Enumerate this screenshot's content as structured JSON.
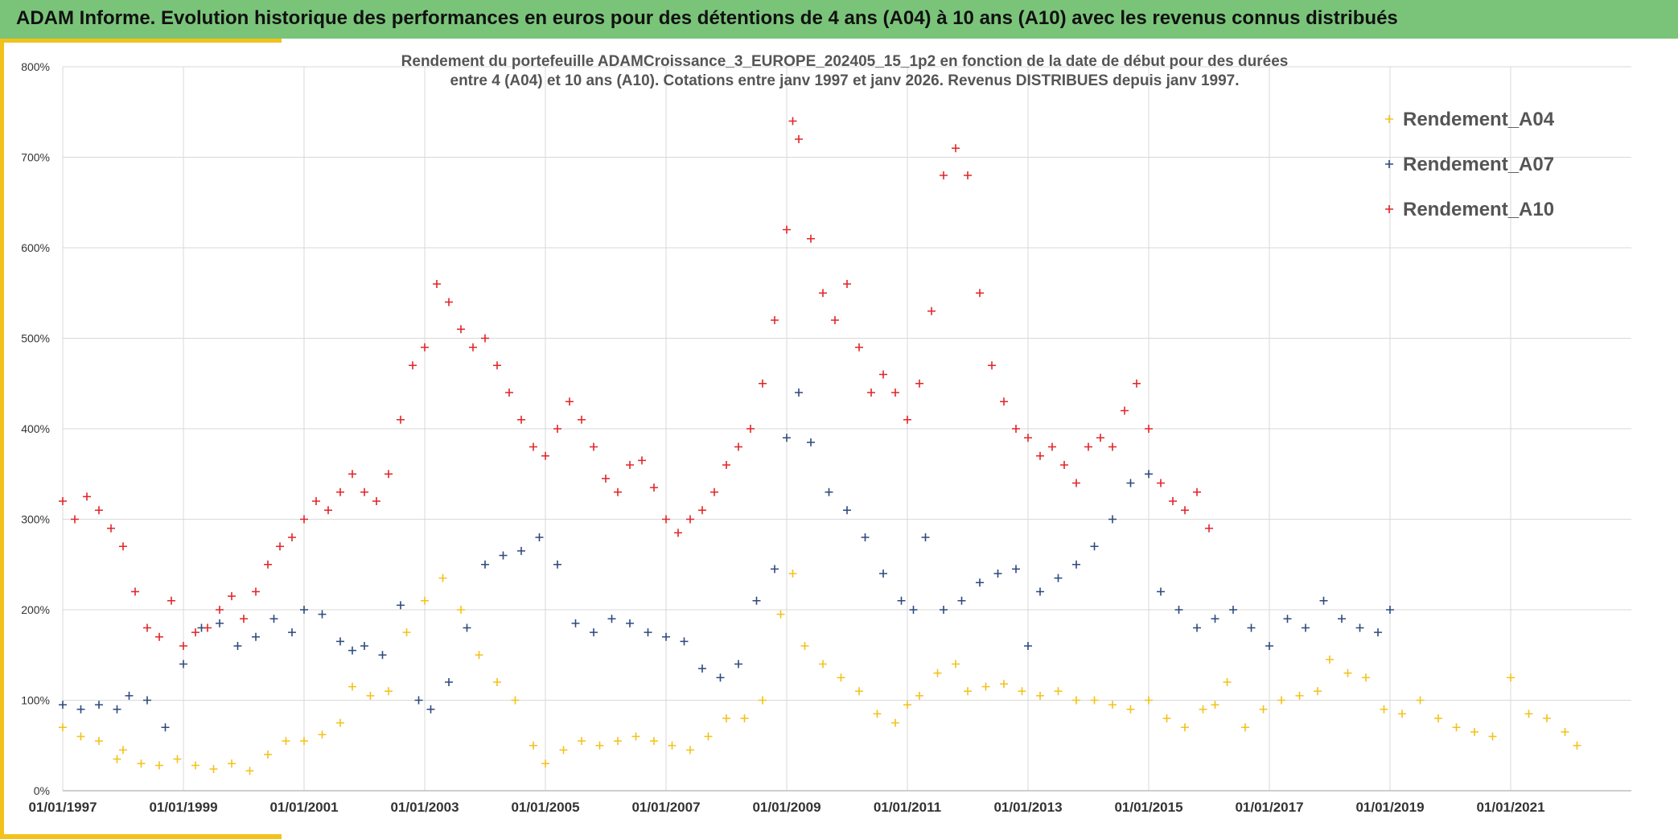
{
  "banner": {
    "title": "ADAM Informe. Evolution historique des performances en euros pour des détentions de 4 ans (A04) à 10 ans (A10) avec les revenus connus distribués"
  },
  "chart_data": {
    "type": "scatter",
    "title_line1": "Rendement du portefeuille ADAMCroissance_3_EUROPE_202405_15_1p2  en fonction de la date de début pour des durées",
    "title_line2": "entre 4 (A04) et 10 ans (A10). Cotations entre janv 1997 et janv 2026. Revenus DISTRIBUES depuis janv 1997.",
    "x_ticks": [
      "01/01/1997",
      "01/01/1999",
      "01/01/2001",
      "01/01/2003",
      "01/01/2005",
      "01/01/2007",
      "01/01/2009",
      "01/01/2011",
      "01/01/2013",
      "01/01/2015",
      "01/01/2017",
      "01/01/2019",
      "01/01/2021"
    ],
    "y_ticks": [
      "0%",
      "100%",
      "200%",
      "300%",
      "400%",
      "500%",
      "600%",
      "700%",
      "800%"
    ],
    "xlim": [
      1997.0,
      2023.0
    ],
    "ylim": [
      0,
      800
    ],
    "legend_position": "top-right",
    "series": [
      {
        "name": "Rendement_A04",
        "color": "#f2c21b",
        "x": [
          1997.0,
          1997.3,
          1997.6,
          1997.9,
          1998.0,
          1998.3,
          1998.6,
          1998.9,
          1999.2,
          1999.5,
          1999.8,
          2000.1,
          2000.4,
          2000.7,
          2001.0,
          2001.3,
          2001.6,
          2001.8,
          2002.1,
          2002.4,
          2002.7,
          2003.0,
          2003.3,
          2003.6,
          2003.9,
          2004.2,
          2004.5,
          2004.8,
          2005.0,
          2005.3,
          2005.6,
          2005.9,
          2006.2,
          2006.5,
          2006.8,
          2007.1,
          2007.4,
          2007.7,
          2008.0,
          2008.3,
          2008.6,
          2008.9,
          2009.1,
          2009.3,
          2009.6,
          2009.9,
          2010.2,
          2010.5,
          2010.8,
          2011.0,
          2011.2,
          2011.5,
          2011.8,
          2012.0,
          2012.3,
          2012.6,
          2012.9,
          2013.2,
          2013.5,
          2013.8,
          2014.1,
          2014.4,
          2014.7,
          2015.0,
          2015.3,
          2015.6,
          2015.9,
          2016.1,
          2016.3,
          2016.6,
          2016.9,
          2017.2,
          2017.5,
          2017.8,
          2018.0,
          2018.3,
          2018.6,
          2018.9,
          2019.2,
          2019.5,
          2019.8,
          2020.1,
          2020.4,
          2020.7,
          2021.0,
          2021.3,
          2021.6,
          2021.9,
          2022.1
        ],
        "y": [
          70,
          60,
          55,
          35,
          45,
          30,
          28,
          35,
          28,
          24,
          30,
          22,
          40,
          55,
          55,
          62,
          75,
          115,
          105,
          110,
          175,
          210,
          235,
          200,
          150,
          120,
          100,
          50,
          30,
          45,
          55,
          50,
          55,
          60,
          55,
          50,
          45,
          60,
          80,
          80,
          100,
          195,
          240,
          160,
          140,
          125,
          110,
          85,
          75,
          95,
          105,
          130,
          140,
          110,
          115,
          118,
          110,
          105,
          110,
          100,
          100,
          95,
          90,
          100,
          80,
          70,
          90,
          95,
          120,
          70,
          90,
          100,
          105,
          110,
          145,
          130,
          125,
          90,
          85,
          100,
          80,
          70,
          65,
          60,
          125,
          85,
          80,
          65,
          50
        ]
      },
      {
        "name": "Rendement_A07",
        "color": "#2e4a7d",
        "x": [
          1997.0,
          1997.3,
          1997.6,
          1997.9,
          1998.1,
          1998.4,
          1998.7,
          1999.0,
          1999.3,
          1999.6,
          1999.9,
          2000.2,
          2000.5,
          2000.8,
          2001.0,
          2001.3,
          2001.6,
          2001.8,
          2002.0,
          2002.3,
          2002.6,
          2002.9,
          2003.1,
          2003.4,
          2003.7,
          2004.0,
          2004.3,
          2004.6,
          2004.9,
          2005.2,
          2005.5,
          2005.8,
          2006.1,
          2006.4,
          2006.7,
          2007.0,
          2007.3,
          2007.6,
          2007.9,
          2008.2,
          2008.5,
          2008.8,
          2009.0,
          2009.2,
          2009.4,
          2009.7,
          2010.0,
          2010.3,
          2010.6,
          2010.9,
          2011.1,
          2011.3,
          2011.6,
          2011.9,
          2012.2,
          2012.5,
          2012.8,
          2013.0,
          2013.2,
          2013.5,
          2013.8,
          2014.1,
          2014.4,
          2014.7,
          2015.0,
          2015.2,
          2015.5,
          2015.8,
          2016.1,
          2016.4,
          2016.7,
          2017.0,
          2017.3,
          2017.6,
          2017.9,
          2018.2,
          2018.5,
          2018.8,
          2019.0
        ],
        "y": [
          95,
          90,
          95,
          90,
          105,
          100,
          70,
          140,
          180,
          185,
          160,
          170,
          190,
          175,
          200,
          195,
          165,
          155,
          160,
          150,
          205,
          100,
          90,
          120,
          180,
          250,
          260,
          265,
          280,
          250,
          185,
          175,
          190,
          185,
          175,
          170,
          165,
          135,
          125,
          140,
          210,
          245,
          390,
          440,
          385,
          330,
          310,
          280,
          240,
          210,
          200,
          280,
          200,
          210,
          230,
          240,
          245,
          160,
          220,
          235,
          250,
          270,
          300,
          340,
          350,
          220,
          200,
          180,
          190,
          200,
          180,
          160,
          190,
          180,
          210,
          190,
          180,
          175,
          200
        ]
      },
      {
        "name": "Rendement_A10",
        "color": "#e0262a",
        "x": [
          1997.0,
          1997.2,
          1997.4,
          1997.6,
          1997.8,
          1998.0,
          1998.2,
          1998.4,
          1998.6,
          1998.8,
          1999.0,
          1999.2,
          1999.4,
          1999.6,
          1999.8,
          2000.0,
          2000.2,
          2000.4,
          2000.6,
          2000.8,
          2001.0,
          2001.2,
          2001.4,
          2001.6,
          2001.8,
          2002.0,
          2002.2,
          2002.4,
          2002.6,
          2002.8,
          2003.0,
          2003.2,
          2003.4,
          2003.6,
          2003.8,
          2004.0,
          2004.2,
          2004.4,
          2004.6,
          2004.8,
          2005.0,
          2005.2,
          2005.4,
          2005.6,
          2005.8,
          2006.0,
          2006.2,
          2006.4,
          2006.6,
          2006.8,
          2007.0,
          2007.2,
          2007.4,
          2007.6,
          2007.8,
          2008.0,
          2008.2,
          2008.4,
          2008.6,
          2008.8,
          2009.0,
          2009.1,
          2009.2,
          2009.4,
          2009.6,
          2009.8,
          2010.0,
          2010.2,
          2010.4,
          2010.6,
          2010.8,
          2011.0,
          2011.2,
          2011.4,
          2011.6,
          2011.8,
          2012.0,
          2012.2,
          2012.4,
          2012.6,
          2012.8,
          2013.0,
          2013.2,
          2013.4,
          2013.6,
          2013.8,
          2014.0,
          2014.2,
          2014.4,
          2014.6,
          2014.8,
          2015.0,
          2015.2,
          2015.4,
          2015.6,
          2015.8,
          2016.0
        ],
        "y": [
          320,
          300,
          325,
          310,
          290,
          270,
          220,
          180,
          170,
          210,
          160,
          175,
          180,
          200,
          215,
          190,
          220,
          250,
          270,
          280,
          300,
          320,
          310,
          330,
          350,
          330,
          320,
          350,
          410,
          470,
          490,
          560,
          540,
          510,
          490,
          500,
          470,
          440,
          410,
          380,
          370,
          400,
          430,
          410,
          380,
          345,
          330,
          360,
          365,
          335,
          300,
          285,
          300,
          310,
          330,
          360,
          380,
          400,
          450,
          520,
          620,
          740,
          720,
          610,
          550,
          520,
          560,
          490,
          440,
          460,
          440,
          410,
          450,
          530,
          680,
          710,
          680,
          550,
          470,
          430,
          400,
          390,
          370,
          380,
          360,
          340,
          380,
          390,
          380,
          420,
          450,
          400,
          340,
          320,
          310,
          330,
          290
        ]
      }
    ]
  }
}
